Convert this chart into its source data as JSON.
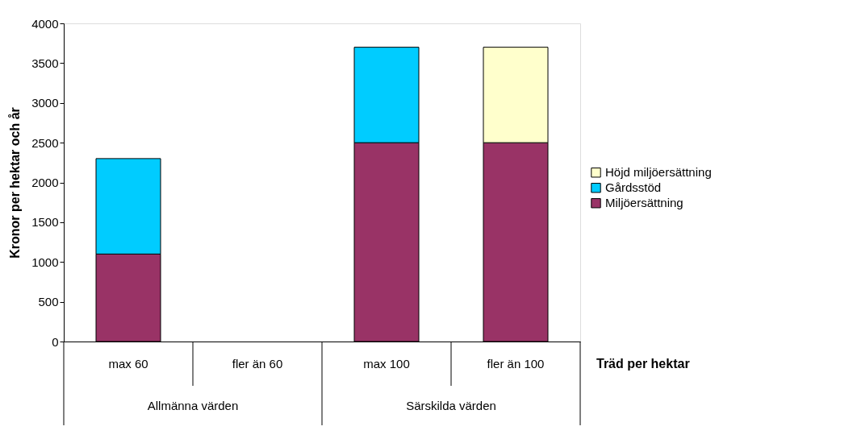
{
  "chart_data": {
    "type": "bar",
    "stacked": true,
    "ylabel": "Kronor per hektar och år",
    "xlabel": "Träd per hektar",
    "categories": [
      "max 60",
      "fler än 60",
      "max 100",
      "fler än 100"
    ],
    "series": [
      {
        "name": "Miljöersättning",
        "color": "#993366",
        "values": [
          1100,
          null,
          2500,
          2500
        ]
      },
      {
        "name": "Gårdsstöd",
        "color": "#00ccff",
        "values": [
          1200,
          null,
          1200,
          null
        ]
      },
      {
        "name": "Höjd miljöersättning",
        "color": "#ffffcc",
        "values": [
          null,
          null,
          null,
          1200
        ]
      }
    ],
    "annotations": [
      "Allmänna värden",
      "Särskilda värden"
    ],
    "ylim": [
      0,
      4000
    ],
    "yticks": [
      0,
      500,
      1000,
      1500,
      2000,
      2500,
      3000,
      3500,
      4000
    ],
    "grid": false,
    "legend": "right"
  }
}
